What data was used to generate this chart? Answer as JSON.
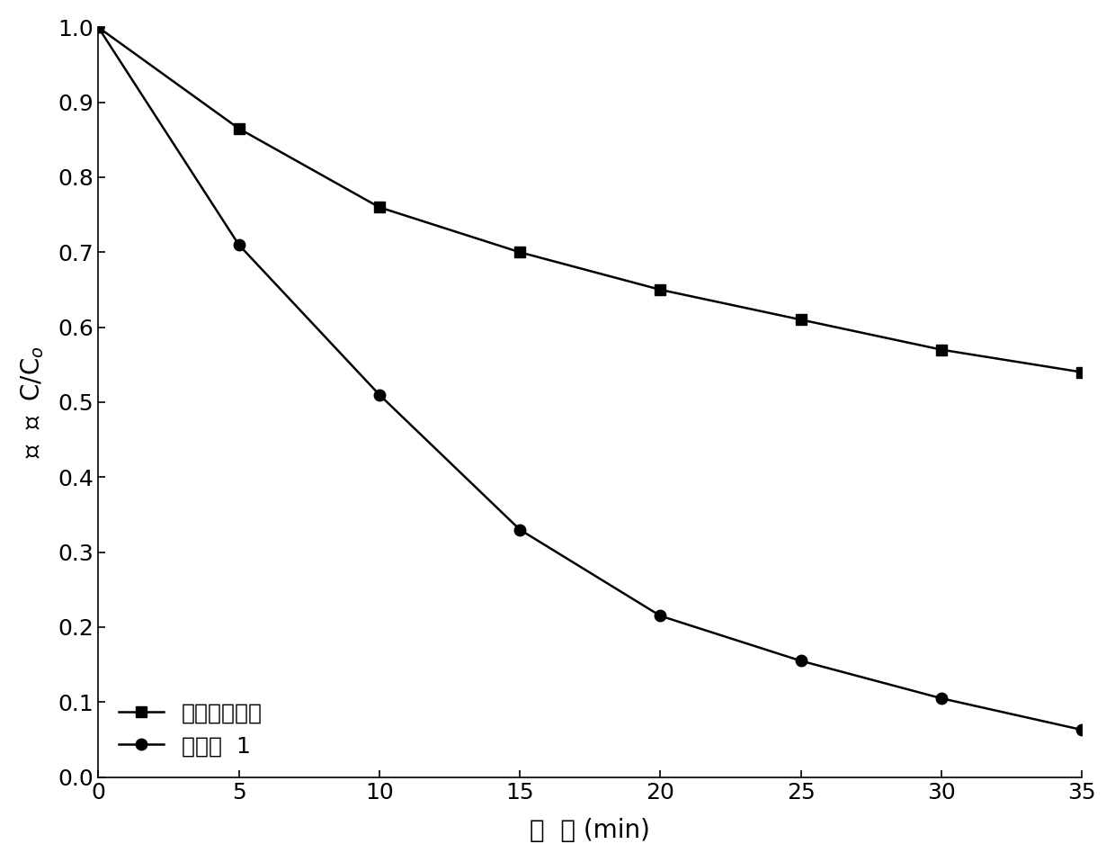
{
  "series1_label": "单独臭氧氧化",
  "series2_label": "实施例  1",
  "x": [
    0,
    5,
    10,
    15,
    20,
    25,
    30,
    35
  ],
  "series1_y": [
    1.0,
    0.865,
    0.76,
    0.7,
    0.65,
    0.61,
    0.57,
    0.54
  ],
  "series2_y": [
    1.0,
    0.71,
    0.51,
    0.33,
    0.215,
    0.155,
    0.105,
    0.063
  ],
  "xlabel": "时  间 (min)",
  "ylabel": "苯  酚  C/Cₒ",
  "xlim": [
    0,
    35
  ],
  "ylim": [
    0.0,
    1.0
  ],
  "xticks": [
    0,
    5,
    10,
    15,
    20,
    25,
    30,
    35
  ],
  "yticks": [
    0.0,
    0.1,
    0.2,
    0.3,
    0.4,
    0.5,
    0.6,
    0.7,
    0.8,
    0.9,
    1.0
  ],
  "line_color": "#000000",
  "marker1": "s",
  "marker2": "o",
  "markersize": 9,
  "linewidth": 1.8,
  "background_color": "#ffffff",
  "legend_fontsize": 18,
  "axis_label_fontsize": 20,
  "tick_fontsize": 18
}
